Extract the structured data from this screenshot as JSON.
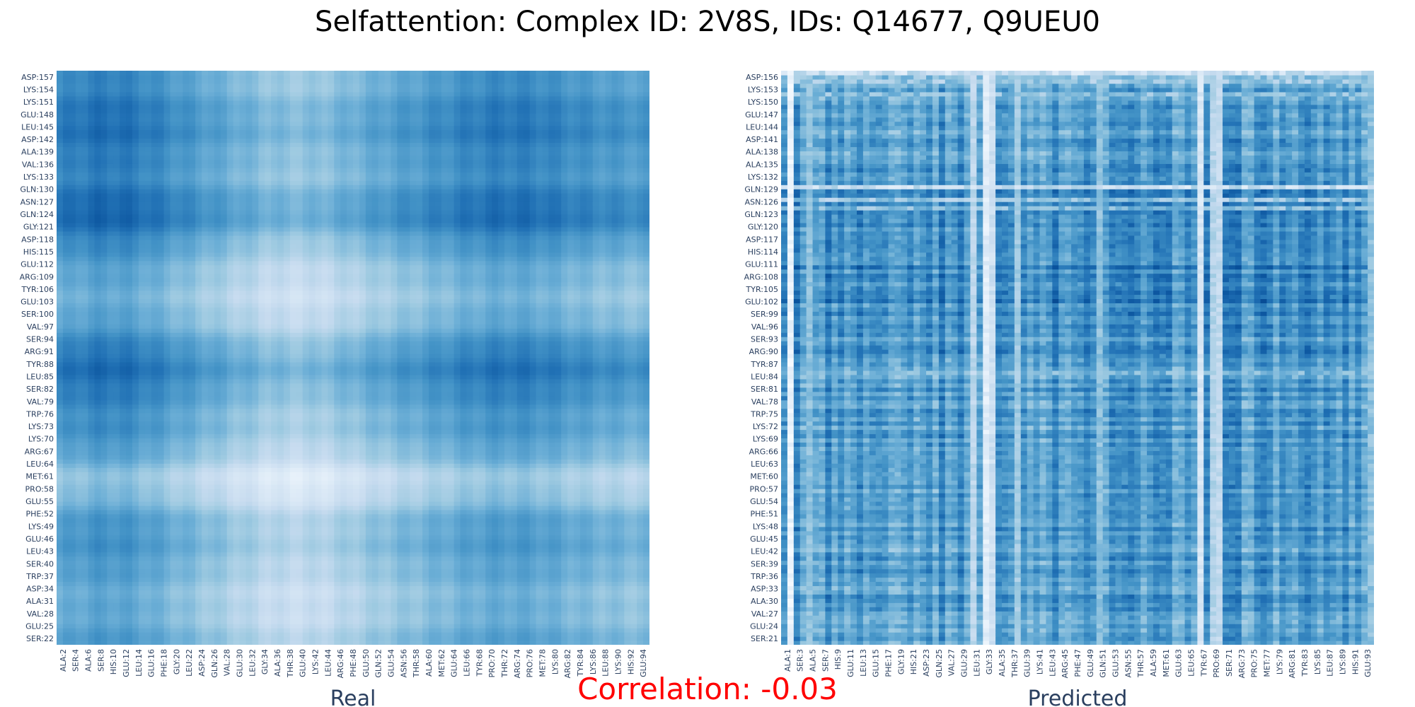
{
  "title": "Selfattention: Complex ID: 2V8S, IDs: Q14677, Q9UEU0",
  "correlation_label": "Correlation: -0.03",
  "colors": {
    "low": "#f7fbff",
    "high": "#08306b",
    "title": "#000000",
    "correlation": "#ff0000",
    "axis_text": "#2a3f5f"
  },
  "chart_data": [
    {
      "type": "heatmap",
      "name": "Real",
      "xlabel": "Real",
      "colorscale": "Blues",
      "x_tick_labels": [
        "ALA:2",
        "SER:4",
        "ALA:6",
        "SER:8",
        "HIS:10",
        "GLU:12",
        "LEU:14",
        "GLU:16",
        "PHE:18",
        "GLY:20",
        "LEU:22",
        "ASP:24",
        "GLN:26",
        "VAL:28",
        "GLU:30",
        "LEU:32",
        "GLY:34",
        "ALA:36",
        "THR:38",
        "GLU:40",
        "LYS:42",
        "LEU:44",
        "ARG:46",
        "PHE:48",
        "GLU:50",
        "GLN:52",
        "GLU:54",
        "ASN:56",
        "THR:58",
        "ALA:60",
        "MET:62",
        "GLU:64",
        "LEU:66",
        "TYR:68",
        "PRO:70",
        "THR:72",
        "ARG:74",
        "PRO:76",
        "MET:78",
        "LYS:80",
        "ARG:82",
        "TYR:84",
        "LYS:86",
        "LEU:88",
        "LYS:90",
        "HIS:92",
        "GLU:94"
      ],
      "y_tick_labels": [
        "SER:22",
        "GLU:25",
        "VAL:28",
        "ALA:31",
        "ASP:34",
        "TRP:37",
        "SER:40",
        "LEU:43",
        "GLU:46",
        "LYS:49",
        "PHE:52",
        "GLU:55",
        "PRO:58",
        "MET:61",
        "LEU:64",
        "ARG:67",
        "LYS:70",
        "LYS:73",
        "TRP:76",
        "VAL:79",
        "SER:82",
        "LEU:85",
        "TYR:88",
        "ARG:91",
        "SER:94",
        "VAL:97",
        "SER:100",
        "GLU:103",
        "TYR:106",
        "ARG:109",
        "GLU:112",
        "HIS:115",
        "ASP:118",
        "GLY:121",
        "GLN:124",
        "ASN:127",
        "GLN:130",
        "LYS:133",
        "VAL:136",
        "ALA:139",
        "ASP:142",
        "LEU:145",
        "GLU:148",
        "LYS:151",
        "LYS:154",
        "ASP:157"
      ],
      "n_cols": 94,
      "n_rows": 136,
      "pattern": "smooth"
    },
    {
      "type": "heatmap",
      "name": "Predicted",
      "xlabel": "Predicted",
      "colorscale": "Blues",
      "x_tick_labels": [
        "ALA:1",
        "SER:3",
        "ALA:5",
        "SER:7",
        "HIS:9",
        "GLU:11",
        "LEU:13",
        "GLU:15",
        "PHE:17",
        "GLY:19",
        "HIS:21",
        "ASP:23",
        "GLN:25",
        "VAL:27",
        "GLU:29",
        "LEU:31",
        "GLY:33",
        "ALA:35",
        "THR:37",
        "GLU:39",
        "LYS:41",
        "LEU:43",
        "ARG:45",
        "PHE:47",
        "GLU:49",
        "GLN:51",
        "GLU:53",
        "ASN:55",
        "THR:57",
        "ALA:59",
        "MET:61",
        "GLU:63",
        "LEU:65",
        "TYR:67",
        "PRO:69",
        "SER:71",
        "ARG:73",
        "PRO:75",
        "MET:77",
        "LYS:79",
        "ARG:81",
        "TYR:83",
        "LYS:85",
        "LEU:87",
        "LYS:89",
        "HIS:91",
        "GLU:93"
      ],
      "y_tick_labels": [
        "SER:21",
        "GLU:24",
        "VAL:27",
        "ALA:30",
        "ASP:33",
        "TRP:36",
        "SER:39",
        "LEU:42",
        "GLU:45",
        "LYS:48",
        "PHE:51",
        "GLU:54",
        "PRO:57",
        "MET:60",
        "LEU:63",
        "ARG:66",
        "LYS:69",
        "LYS:72",
        "TRP:75",
        "VAL:78",
        "SER:81",
        "LEU:84",
        "TYR:87",
        "ARG:90",
        "SER:93",
        "VAL:96",
        "SER:99",
        "GLU:102",
        "TYR:105",
        "ARG:108",
        "GLU:111",
        "HIS:114",
        "ASP:117",
        "GLY:120",
        "GLN:123",
        "ASN:126",
        "GLN:129",
        "LYS:132",
        "ALA:135",
        "ALA:138",
        "ASP:141",
        "LEU:144",
        "GLU:147",
        "LYS:150",
        "LYS:153",
        "ASP:156"
      ],
      "n_cols": 94,
      "n_rows": 136,
      "pattern": "noisy"
    }
  ]
}
